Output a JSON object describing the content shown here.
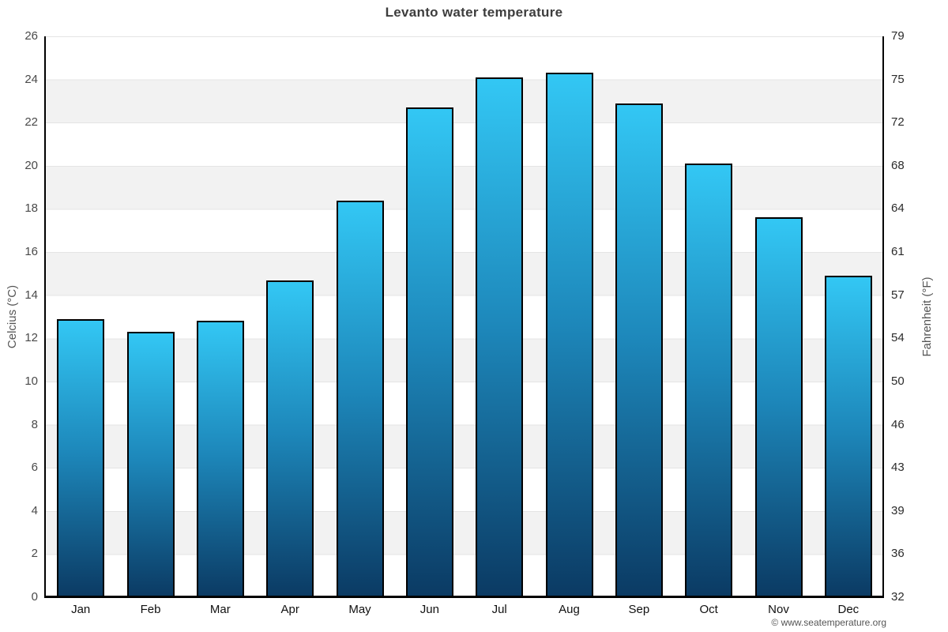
{
  "chart_data": {
    "type": "bar",
    "title": "Levanto water temperature",
    "categories": [
      "Jan",
      "Feb",
      "Mar",
      "Apr",
      "May",
      "Jun",
      "Jul",
      "Aug",
      "Sep",
      "Oct",
      "Nov",
      "Dec"
    ],
    "values": [
      12.9,
      12.3,
      12.8,
      14.7,
      18.4,
      22.7,
      24.1,
      24.3,
      22.9,
      20.1,
      17.6,
      14.9
    ],
    "unit": "°C",
    "ylabel_left": "Celcius (°C)",
    "ylabel_right": "Fahrenheit (°F)",
    "ylim": [
      0,
      26
    ],
    "ytick_step": 2,
    "celsius_ticks": [
      26,
      24,
      22,
      20,
      18,
      16,
      14,
      12,
      10,
      8,
      6,
      4,
      2,
      0
    ],
    "fahrenheit_ticks": [
      79,
      75,
      72,
      68,
      64,
      61,
      57,
      54,
      50,
      46,
      43,
      39,
      36,
      32
    ],
    "legend": "none",
    "grid": "alternating horizontal 2-degree bands, white and light gray, gridline at each band boundary",
    "colors": {
      "bar_gradient_top": "#33c7f4",
      "bar_gradient_mid": "#1d87ba",
      "bar_gradient_bottom": "#0b3a63",
      "bar_border": "#000000",
      "band_white": "#ffffff",
      "band_gray": "#f2f2f2",
      "gridline": "#e4e4e4",
      "axis_line": "#000000",
      "title_text": "#3d3d3d",
      "left_tick_text": "#4a4a4a",
      "right_tick_text": "#2b2b2b",
      "month_text": "#111111",
      "axis_title_text": "#555555"
    }
  },
  "footer": {
    "copyright": "© www.seatemperature.org"
  }
}
